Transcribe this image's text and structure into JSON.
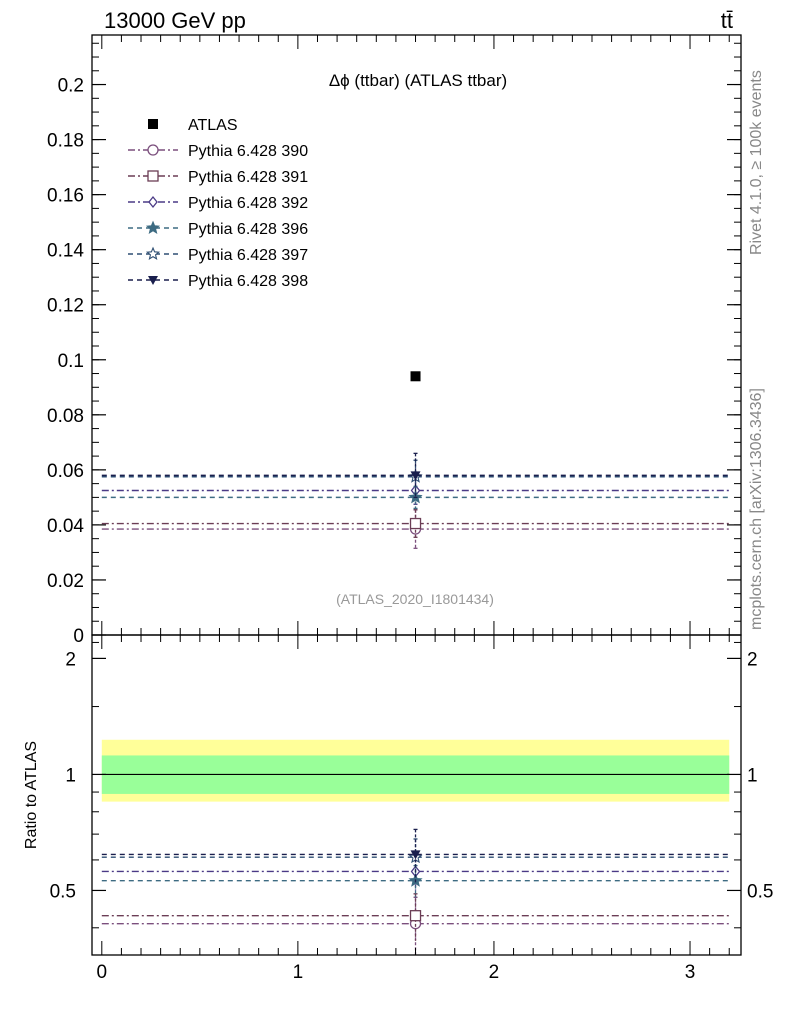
{
  "header": {
    "left": "13000 GeV pp",
    "right": "tt̄"
  },
  "side_labels": {
    "rivet": "Rivet 4.1.0, ≥ 100k events",
    "mcplots": "mcplots.cern.ch [arXiv:1306.3436]"
  },
  "chart_data": {
    "type": "scatter",
    "title": "Δϕ (ttbar) (ATLAS ttbar)",
    "watermark": "(ATLAS_2020_I1801434)",
    "xlabel": "",
    "ylabel": "",
    "xlim": [
      -0.05,
      3.26
    ],
    "ylim": [
      0,
      0.218
    ],
    "y_ticks": [
      "0",
      "0.02",
      "0.04",
      "0.06",
      "0.08",
      "0.1",
      "0.12",
      "0.14",
      "0.16",
      "0.18",
      "0.2"
    ],
    "x_ticks": [
      "0",
      "1",
      "2",
      "3"
    ],
    "bin": [
      0.0,
      3.2
    ],
    "x_point": 1.6,
    "data": {
      "name": "ATLAS",
      "y": 0.094,
      "color": "#000000",
      "marker": "square-filled"
    },
    "series": [
      {
        "name": "Pythia 6.428 390",
        "y": 0.0385,
        "err": 0.007,
        "color": "#7b4f7d",
        "marker": "circle-open",
        "dash": "7,3,2,3"
      },
      {
        "name": "Pythia 6.428 391",
        "y": 0.0405,
        "err": 0.005,
        "color": "#6b3d55",
        "marker": "square-open",
        "dash": "7,3,2,3"
      },
      {
        "name": "Pythia 6.428 392",
        "y": 0.0525,
        "err": 0.005,
        "color": "#4a3a86",
        "marker": "diamond-open",
        "dash": "7,3,2,3"
      },
      {
        "name": "Pythia 6.428 396",
        "y": 0.05,
        "err": 0.004,
        "color": "#3d6b82",
        "marker": "star-filled",
        "dash": "5,4"
      },
      {
        "name": "Pythia 6.428 397",
        "y": 0.0575,
        "err": 0.006,
        "color": "#2f4f73",
        "marker": "star-open",
        "dash": "5,4"
      },
      {
        "name": "Pythia 6.428 398",
        "y": 0.058,
        "err": 0.008,
        "color": "#1a1f4d",
        "marker": "triangle-down-filled",
        "dash": "5,4"
      }
    ],
    "ratio": {
      "ylabel": "Ratio to ATLAS",
      "ylim": [
        0.34,
        2.3
      ],
      "y_ticks": [
        "0.5",
        "1",
        "2"
      ],
      "band_inner": [
        0.89,
        1.12
      ],
      "band_outer": [
        0.85,
        1.23
      ],
      "band_inner_color": "#99ff99",
      "band_outer_color": "#ffff99",
      "values": [
        0.41,
        0.43,
        0.56,
        0.53,
        0.61,
        0.62
      ],
      "errors": [
        0.07,
        0.06,
        0.06,
        0.05,
        0.07,
        0.1
      ]
    }
  }
}
